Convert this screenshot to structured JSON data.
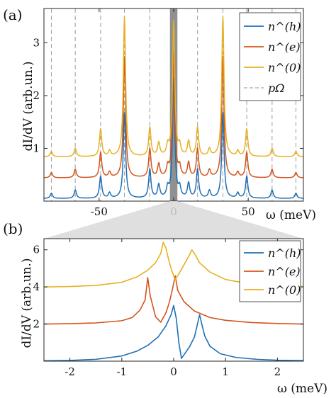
{
  "figure": {
    "panel_a_label": "(a)",
    "panel_b_label": "(b)",
    "zoom_shading_color": "#909090",
    "colors": {
      "h": "#1f6fb5",
      "e": "#d4541c",
      "zero": "#e8b021",
      "pOmega": "#a6a6a6"
    }
  },
  "chart_data": [
    {
      "panel": "(a)",
      "type": "line",
      "xlabel": "ω (meV)",
      "ylabel": "dI/dV (arb.un.)",
      "xlim": [
        -87,
        87
      ],
      "ylim": [
        0,
        3.65
      ],
      "xticks": [
        -50,
        0,
        50
      ],
      "xtick_labels": [
        "-50",
        "0",
        "50"
      ],
      "yticks": [
        1,
        2,
        3
      ],
      "ytick_labels": [
        "1",
        "2",
        "3"
      ],
      "grid": false,
      "legend_position": "top-right",
      "legend": [
        "n^(h)",
        "n^(e)",
        "n^(0)",
        "pΩ"
      ],
      "shaded_region": [
        -2.5,
        2.5
      ],
      "pOmega_lines": [
        -82,
        -66,
        -49,
        -33,
        -16,
        16,
        33,
        49,
        66,
        82
      ],
      "series": [
        {
          "name": "n^(h)",
          "offset": 0.0,
          "baseline_from_offset": 0.05,
          "peaks": [
            [
              -82,
              0.1
            ],
            [
              -66,
              0.16
            ],
            [
              -49,
              0.42
            ],
            [
              -43,
              0.1
            ],
            [
              -33,
              1.63
            ],
            [
              -16,
              0.55
            ],
            [
              -10,
              0.25
            ],
            [
              -4,
              0.18
            ],
            [
              0,
              2.25
            ],
            [
              4,
              0.18
            ],
            [
              10,
              0.28
            ],
            [
              16,
              0.55
            ],
            [
              24,
              0.14
            ],
            [
              33,
              1.63
            ],
            [
              43,
              0.1
            ],
            [
              49,
              0.42
            ],
            [
              66,
              0.16
            ],
            [
              82,
              0.1
            ]
          ]
        },
        {
          "name": "n^(e)",
          "offset": 0.4,
          "baseline_from_offset": 0.04,
          "peaks": [
            [
              -82,
              0.1
            ],
            [
              -66,
              0.16
            ],
            [
              -49,
              0.48
            ],
            [
              -43,
              0.1
            ],
            [
              -33,
              2.3
            ],
            [
              -16,
              0.55
            ],
            [
              -10,
              0.25
            ],
            [
              -4,
              0.18
            ],
            [
              0,
              2.35
            ],
            [
              4,
              0.18
            ],
            [
              10,
              0.28
            ],
            [
              16,
              0.55
            ],
            [
              24,
              0.14
            ],
            [
              33,
              2.3
            ],
            [
              43,
              0.1
            ],
            [
              49,
              0.48
            ],
            [
              66,
              0.16
            ],
            [
              82,
              0.1
            ]
          ]
        },
        {
          "name": "n^(0)",
          "offset": 0.8,
          "baseline_from_offset": 0.04,
          "peaks": [
            [
              -82,
              0.1
            ],
            [
              -66,
              0.16
            ],
            [
              -49,
              0.52
            ],
            [
              -43,
              0.1
            ],
            [
              -33,
              2.65
            ],
            [
              -16,
              0.55
            ],
            [
              -10,
              0.25
            ],
            [
              -4,
              0.18
            ],
            [
              0,
              2.55
            ],
            [
              4,
              0.18
            ],
            [
              10,
              0.28
            ],
            [
              16,
              0.55
            ],
            [
              24,
              0.14
            ],
            [
              33,
              2.65
            ],
            [
              43,
              0.1
            ],
            [
              49,
              0.52
            ],
            [
              66,
              0.16
            ],
            [
              82,
              0.1
            ]
          ]
        }
      ]
    },
    {
      "panel": "(b)",
      "type": "line",
      "xlabel": "ω (meV)",
      "ylabel": "dI/dV (arb.un.)",
      "xlim": [
        -2.5,
        2.5
      ],
      "ylim": [
        0,
        6.6
      ],
      "xticks": [
        -2,
        -1,
        0,
        1,
        2
      ],
      "xtick_labels": [
        "-2",
        "-1",
        "0",
        "1",
        "2"
      ],
      "yticks": [
        2,
        4,
        6
      ],
      "ytick_labels": [
        "2",
        "4",
        "6"
      ],
      "grid": false,
      "legend_position": "top-right",
      "legend": [
        "n^(h)",
        "n^(e)",
        "n^(0)"
      ],
      "series": [
        {
          "name": "n^(h)",
          "x": [
            -2.5,
            -2.0,
            -1.5,
            -1.0,
            -0.7,
            -0.5,
            -0.3,
            -0.15,
            -0.05,
            0.0,
            0.05,
            0.1,
            0.15,
            0.2,
            0.3,
            0.4,
            0.45,
            0.5,
            0.55,
            0.6,
            0.7,
            0.9,
            1.2,
            1.6,
            2.0,
            2.5
          ],
          "y": [
            0.02,
            0.04,
            0.1,
            0.28,
            0.55,
            0.85,
            1.3,
            1.9,
            2.5,
            3.0,
            2.3,
            1.0,
            0.15,
            0.35,
            0.75,
            1.3,
            1.9,
            2.5,
            1.9,
            1.35,
            0.8,
            0.4,
            0.2,
            0.1,
            0.05,
            0.03
          ]
        },
        {
          "name": "n^(e)",
          "x": [
            -2.5,
            -2.0,
            -1.5,
            -1.0,
            -0.8,
            -0.65,
            -0.55,
            -0.5,
            -0.45,
            -0.35,
            -0.25,
            -0.15,
            -0.08,
            -0.03,
            0.0,
            0.03,
            0.08,
            0.2,
            0.4,
            0.7,
            1.0,
            1.5,
            2.0,
            2.5
          ],
          "y": [
            2.0,
            2.02,
            2.06,
            2.18,
            2.35,
            2.75,
            3.3,
            4.5,
            3.5,
            2.4,
            2.1,
            2.6,
            3.2,
            3.8,
            4.2,
            4.6,
            3.8,
            3.2,
            2.7,
            2.35,
            2.2,
            2.08,
            2.03,
            2.0
          ]
        },
        {
          "name": "n^(0)",
          "x": [
            -2.5,
            -2.0,
            -1.5,
            -1.0,
            -0.7,
            -0.5,
            -0.35,
            -0.25,
            -0.2,
            -0.15,
            -0.1,
            -0.05,
            0.0,
            0.02,
            0.05,
            0.1,
            0.2,
            0.3,
            0.35,
            0.4,
            0.5,
            0.7,
            1.0,
            1.5,
            2.0,
            2.5
          ],
          "y": [
            4.0,
            4.02,
            4.08,
            4.25,
            4.55,
            4.9,
            5.3,
            5.8,
            6.4,
            6.1,
            5.5,
            5.0,
            4.6,
            4.4,
            4.5,
            4.7,
            5.2,
            5.7,
            6.0,
            5.8,
            5.3,
            4.8,
            4.4,
            4.15,
            4.05,
            4.02
          ]
        }
      ]
    }
  ]
}
